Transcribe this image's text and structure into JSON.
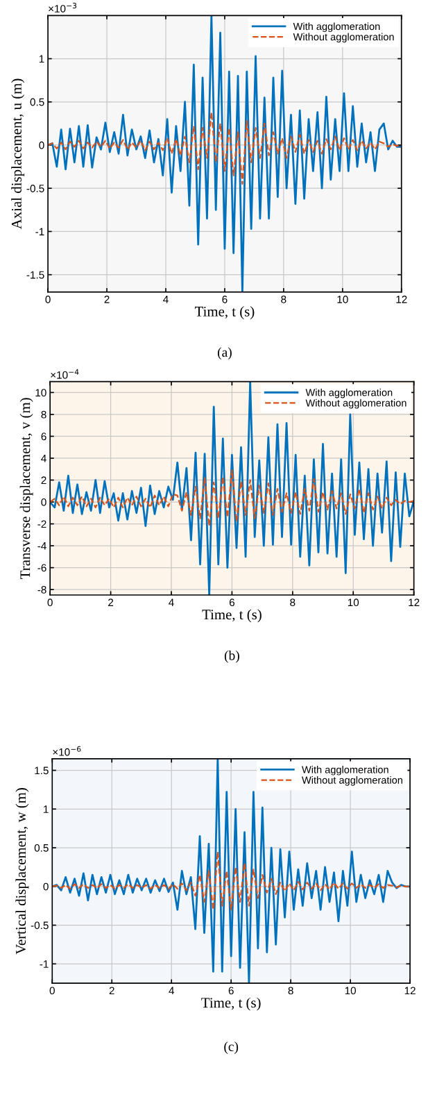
{
  "chart_data": [
    {
      "type": "line",
      "xlabel": "Time, t (s)",
      "ylabel": "Axial displacement, u (m)",
      "annotations": [
        "×10$^{−3}$",
        "(a)"
      ],
      "xlim": [
        0,
        12
      ],
      "xticks": [
        0,
        2,
        4,
        6,
        8,
        10,
        12
      ],
      "ylim": [
        -1.7,
        1.5
      ],
      "yticks": [
        -1.5,
        -1,
        -0.5,
        0,
        0.5,
        1
      ],
      "grid": true,
      "legend": "top right",
      "x": [
        0,
        0.15,
        0.3,
        0.45,
        0.6,
        0.75,
        0.9,
        1.05,
        1.2,
        1.35,
        1.5,
        1.65,
        1.8,
        1.95,
        2.1,
        2.25,
        2.4,
        2.55,
        2.7,
        2.85,
        3,
        3.15,
        3.3,
        3.45,
        3.6,
        3.75,
        3.9,
        4.05,
        4.2,
        4.35,
        4.5,
        4.65,
        4.8,
        4.95,
        5.1,
        5.25,
        5.4,
        5.55,
        5.7,
        5.85,
        6,
        6.15,
        6.3,
        6.45,
        6.6,
        6.75,
        6.9,
        7.05,
        7.2,
        7.35,
        7.5,
        7.65,
        7.8,
        7.95,
        8.1,
        8.25,
        8.4,
        8.55,
        8.7,
        8.85,
        9,
        9.15,
        9.3,
        9.45,
        9.6,
        9.75,
        9.9,
        10.05,
        10.2,
        10.35,
        10.5,
        10.65,
        10.8,
        10.95,
        11.1,
        11.25,
        11.4,
        11.55,
        11.7,
        11.85,
        12
      ],
      "series": [
        {
          "name": "With agglomeration",
          "color": "#0072bd",
          "line_style": "solid",
          "values": [
            0,
            0.02,
            -0.25,
            0.18,
            -0.28,
            0.19,
            -0.2,
            0.22,
            -0.25,
            0.23,
            -0.26,
            0.09,
            -0.05,
            0.26,
            -0.08,
            0.15,
            -0.1,
            0.35,
            -0.12,
            0.18,
            -0.05,
            0.1,
            -0.15,
            0.17,
            -0.2,
            0.07,
            -0.35,
            0.3,
            -0.55,
            0.22,
            -0.3,
            0.5,
            -0.7,
            0.93,
            -1.15,
            0.78,
            -0.85,
            1.5,
            -0.75,
            1.3,
            -1.2,
            0.85,
            -1.25,
            0.8,
            -1.7,
            0.85,
            -0.97,
            1.03,
            -0.85,
            0.55,
            -0.85,
            0.78,
            -0.6,
            0.86,
            -0.5,
            0.35,
            -0.68,
            0.4,
            -0.62,
            0.3,
            -0.3,
            0.38,
            -0.5,
            0.56,
            -0.4,
            0.3,
            -0.3,
            0.6,
            -0.3,
            0.45,
            -0.25,
            0.25,
            -0.2,
            0.15,
            -0.3,
            0.18,
            0.25,
            -0.05,
            0.05,
            -0.02,
            -0.02
          ]
        },
        {
          "name": "Without agglomeration",
          "color": "#d95319",
          "line_style": "dashed",
          "values": [
            0,
            0.02,
            -0.04,
            0.03,
            -0.05,
            0.04,
            -0.02,
            0.05,
            -0.04,
            0.03,
            -0.03,
            0.04,
            -0.02,
            0.05,
            -0.04,
            0.03,
            -0.03,
            0.06,
            -0.05,
            0.03,
            -0.03,
            0.05,
            -0.06,
            0.04,
            -0.05,
            0.03,
            -0.06,
            0.08,
            -0.1,
            0.07,
            -0.12,
            0.1,
            -0.2,
            0.22,
            -0.28,
            0.2,
            -0.15,
            0.38,
            -0.2,
            0.25,
            -0.3,
            0.2,
            -0.35,
            0.15,
            -0.45,
            0.28,
            -0.2,
            0.2,
            -0.15,
            0.25,
            -0.12,
            0.15,
            -0.1,
            0.08,
            -0.15,
            0.1,
            -0.08,
            0.12,
            -0.1,
            0.06,
            -0.08,
            0.05,
            -0.1,
            0.07,
            -0.05,
            0.1,
            -0.06,
            0.08,
            -0.05,
            0.06,
            -0.06,
            0.05,
            -0.04,
            0.03,
            -0.05,
            0.04,
            0.02,
            -0.02,
            0.01,
            -0.01,
            -0.01
          ]
        }
      ]
    },
    {
      "type": "line",
      "xlabel": "Time, t (s)",
      "ylabel": "Transverse displacement, v (m)",
      "annotations": [
        "×10$^{−4}$",
        "(b)"
      ],
      "xlim": [
        0,
        12
      ],
      "xticks": [
        0,
        2,
        4,
        6,
        8,
        10,
        12
      ],
      "ylim": [
        -8.5,
        11
      ],
      "yticks": [
        -8,
        -6,
        -4,
        -2,
        0,
        2,
        4,
        6,
        8,
        10
      ],
      "grid": true,
      "legend": "top right",
      "x": [
        0,
        0.15,
        0.3,
        0.45,
        0.6,
        0.75,
        0.9,
        1.05,
        1.2,
        1.35,
        1.5,
        1.65,
        1.8,
        1.95,
        2.1,
        2.25,
        2.4,
        2.55,
        2.7,
        2.85,
        3,
        3.15,
        3.3,
        3.45,
        3.6,
        3.75,
        3.9,
        4.05,
        4.2,
        4.35,
        4.5,
        4.65,
        4.8,
        4.95,
        5.1,
        5.25,
        5.4,
        5.55,
        5.7,
        5.85,
        6,
        6.15,
        6.3,
        6.45,
        6.6,
        6.75,
        6.9,
        7.05,
        7.2,
        7.35,
        7.5,
        7.65,
        7.8,
        7.95,
        8.1,
        8.25,
        8.4,
        8.55,
        8.7,
        8.85,
        9,
        9.15,
        9.3,
        9.45,
        9.6,
        9.75,
        9.9,
        10.05,
        10.2,
        10.35,
        10.5,
        10.65,
        10.8,
        10.95,
        11.1,
        11.25,
        11.4,
        11.55,
        11.7,
        11.85,
        12
      ],
      "series": [
        {
          "name": "With agglomeration",
          "color": "#0072bd",
          "line_style": "solid",
          "values": [
            0,
            -0.5,
            1.8,
            -0.8,
            2.4,
            -1,
            1.6,
            -1.1,
            0.9,
            -0.8,
            2,
            -1,
            1.9,
            -0.5,
            0.8,
            -1.7,
            0.8,
            -1.6,
            1,
            -1,
            1.3,
            -2.2,
            1.5,
            -1.1,
            1,
            -0.5,
            1.4,
            0.2,
            3.6,
            -0.7,
            3.1,
            -3.5,
            4.5,
            -5.7,
            4.4,
            -8.5,
            8.7,
            -5.7,
            5.8,
            -6,
            4.3,
            -4.2,
            5,
            -5,
            11,
            -3.2,
            3.8,
            -4,
            5.9,
            -3.9,
            7.1,
            -3.2,
            7.2,
            -3.9,
            4.3,
            -5,
            2.4,
            -5.8,
            3.9,
            -4.6,
            5.3,
            -4.7,
            2.6,
            -5,
            3.9,
            -6.5,
            8,
            -3,
            3.6,
            -3.4,
            3,
            -4,
            2.6,
            -2.8,
            3.7,
            -5.4,
            2.7,
            -4.1,
            2.6,
            -1.3,
            0.1
          ]
        },
        {
          "name": "Without agglomeration",
          "color": "#d95319",
          "line_style": "dashed",
          "values": [
            0,
            0.3,
            -0.3,
            0.5,
            -0.4,
            0.4,
            -0.3,
            0.5,
            -0.4,
            0.3,
            -0.5,
            0.4,
            -0.3,
            0.3,
            -0.5,
            0.4,
            -0.5,
            0.4,
            -0.3,
            0.5,
            -0.4,
            0.3,
            -0.5,
            0.6,
            -0.3,
            0.5,
            -0.4,
            0.7,
            0.6,
            -0.8,
            0.9,
            -1.2,
            1.4,
            -1.5,
            2.2,
            -2.2,
            1.8,
            -1.5,
            2.3,
            -1.4,
            2.9,
            -1.8,
            1.9,
            -1.2,
            2,
            -1.5,
            1.5,
            -1,
            1.7,
            -1.2,
            1.2,
            -0.9,
            0.8,
            -1,
            0.9,
            -1.1,
            1.2,
            -0.8,
            2.1,
            -0.9,
            0.9,
            -0.7,
            1,
            -0.6,
            0.8,
            -1.1,
            0.7,
            -0.6,
            1.2,
            -1,
            0.8,
            -0.7,
            0.5,
            -0.6,
            0.4,
            -0.3,
            0.2,
            -0.2,
            0.1,
            0,
            0.1
          ]
        }
      ]
    },
    {
      "type": "line",
      "xlabel": "Time, t (s)",
      "ylabel": "Vertical displacement, w (m)",
      "annotations": [
        "×10$^{−6}$",
        "(c)"
      ],
      "xlim": [
        0,
        12
      ],
      "xticks": [
        0,
        2,
        4,
        6,
        8,
        10,
        12
      ],
      "ylim": [
        -1.25,
        1.65
      ],
      "yticks": [
        -1,
        -0.5,
        0,
        0.5,
        1,
        1.5
      ],
      "grid": true,
      "legend": "top right",
      "x": [
        0,
        0.15,
        0.3,
        0.45,
        0.6,
        0.75,
        0.9,
        1.05,
        1.2,
        1.35,
        1.5,
        1.65,
        1.8,
        1.95,
        2.1,
        2.25,
        2.4,
        2.55,
        2.7,
        2.85,
        3,
        3.15,
        3.3,
        3.45,
        3.6,
        3.75,
        3.9,
        4.05,
        4.2,
        4.35,
        4.5,
        4.65,
        4.8,
        4.95,
        5.1,
        5.25,
        5.4,
        5.55,
        5.7,
        5.85,
        6,
        6.15,
        6.3,
        6.45,
        6.6,
        6.75,
        6.9,
        7.05,
        7.2,
        7.35,
        7.5,
        7.65,
        7.8,
        7.95,
        8.1,
        8.25,
        8.4,
        8.55,
        8.7,
        8.85,
        9,
        9.15,
        9.3,
        9.45,
        9.6,
        9.75,
        9.9,
        10.05,
        10.2,
        10.35,
        10.5,
        10.65,
        10.8,
        10.95,
        11.1,
        11.25,
        11.4,
        11.55,
        11.7,
        11.85,
        12
      ],
      "series": [
        {
          "name": "With agglomeration",
          "color": "#0072bd",
          "line_style": "solid",
          "values": [
            0,
            0.02,
            -0.05,
            0.12,
            -0.08,
            0.1,
            -0.12,
            0.17,
            -0.18,
            0.15,
            -0.1,
            0.12,
            -0.08,
            0.15,
            -0.1,
            0.08,
            -0.1,
            0.15,
            -0.08,
            0.1,
            -0.05,
            0.1,
            -0.08,
            0.08,
            -0.06,
            0.1,
            -0.07,
            0.05,
            -0.3,
            0.2,
            -0.1,
            0.12,
            -0.55,
            0.65,
            -0.6,
            0.55,
            -1.1,
            1.65,
            -1.1,
            1.22,
            -0.9,
            1,
            -1.05,
            0.7,
            -1.25,
            1.22,
            -0.8,
            1.02,
            -0.85,
            0.5,
            -0.75,
            0.48,
            -0.4,
            0.45,
            -0.3,
            0.22,
            -0.25,
            0.3,
            -0.15,
            0.2,
            -0.3,
            0.25,
            -0.2,
            0.18,
            -0.45,
            0.2,
            -0.25,
            0.45,
            -0.2,
            0.15,
            -0.15,
            0.08,
            -0.1,
            0.15,
            -0.2,
            0.2,
            0.05,
            -0.02,
            0.02,
            0,
            0
          ]
        },
        {
          "name": "Without agglomeration",
          "color": "#d95319",
          "line_style": "dashed",
          "values": [
            0,
            0.01,
            -0.02,
            0.02,
            -0.03,
            0.03,
            -0.02,
            0.03,
            -0.02,
            0.02,
            -0.02,
            0.03,
            -0.02,
            0.02,
            -0.03,
            0.02,
            -0.02,
            0.03,
            -0.02,
            0.02,
            -0.02,
            0.02,
            -0.03,
            0.02,
            -0.02,
            0.02,
            -0.03,
            0.03,
            -0.03,
            0.04,
            -0.05,
            0.05,
            -0.12,
            0.15,
            -0.2,
            0.2,
            -0.3,
            0.45,
            -0.25,
            0.2,
            -0.3,
            0.25,
            -0.2,
            0.3,
            -0.25,
            0.22,
            -0.15,
            0.15,
            -0.08,
            0.1,
            -0.1,
            0.05,
            -0.06,
            0.04,
            -0.05,
            0.06,
            -0.04,
            0.05,
            -0.03,
            0.04,
            -0.05,
            0.03,
            -0.04,
            0.05,
            -0.03,
            0.04,
            -0.03,
            0.04,
            -0.02,
            0.03,
            -0.02,
            0.02,
            -0.02,
            0.03,
            -0.02,
            0.02,
            0.01,
            -0.01,
            0.01,
            0,
            0
          ]
        }
      ]
    }
  ]
}
